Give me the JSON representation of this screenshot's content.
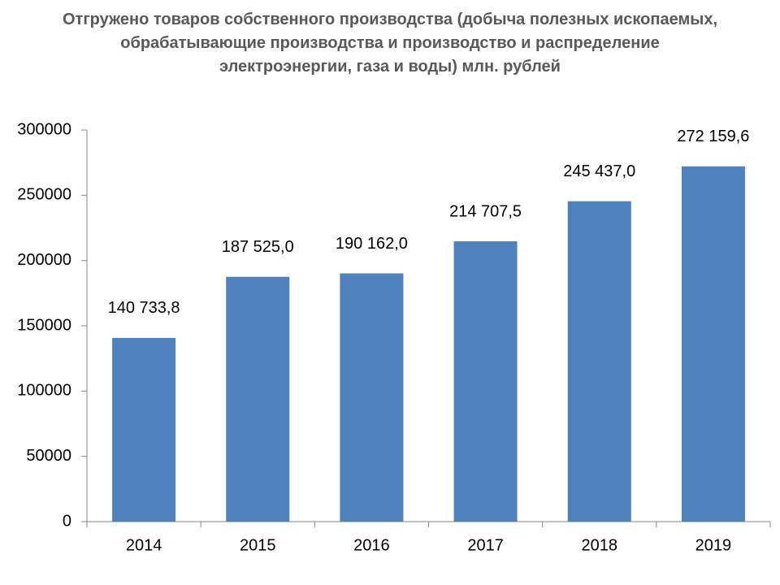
{
  "chart_data": {
    "type": "bar",
    "title": "Отгружено товаров собственного производства (добыча полезных ископаемых, обрабатывающие производства и производство и распределение электроэнергии, газа и воды) млн. рублей",
    "categories": [
      "2014",
      "2015",
      "2016",
      "2017",
      "2018",
      "2019"
    ],
    "values": [
      140733.8,
      187525.0,
      190162.0,
      214707.5,
      245437.0,
      272159.6
    ],
    "value_labels": [
      "140 733,8",
      "187 525,0",
      "190 162,0",
      "214 707,5",
      "245 437,0",
      "272 159,6"
    ],
    "color": "#4f81bd",
    "ylim": [
      0,
      300000
    ],
    "yticks": [
      0,
      50000,
      100000,
      150000,
      200000,
      250000,
      300000
    ],
    "grid": false
  }
}
